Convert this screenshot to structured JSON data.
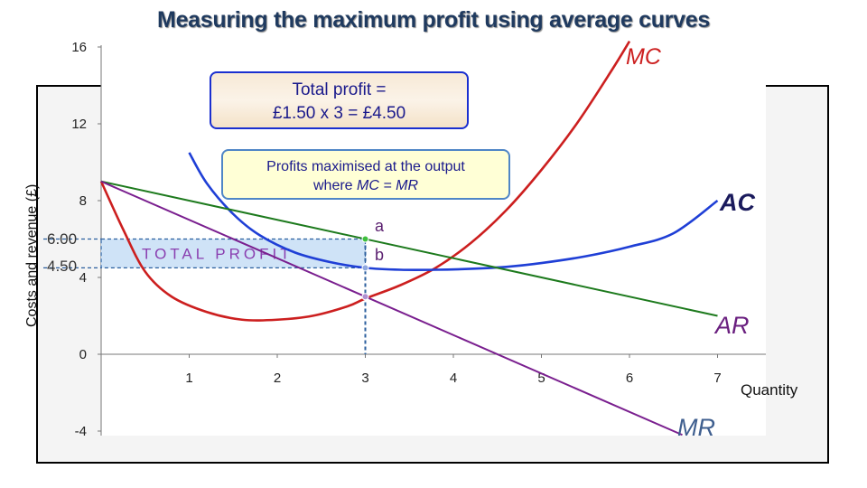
{
  "title": "Measuring the maximum profit using average curves",
  "callouts": {
    "total_profit_line1": "Total profit =",
    "total_profit_line2": "£1.50 x 3 = £4.50",
    "maximised_line1": "Profits maximised at the output",
    "maximised_line2_prefix": "where ",
    "maximised_line2_em": "MC = MR"
  },
  "colors": {
    "mc": "#cc1f1f",
    "ac": "#1f3fd6",
    "ar": "#1d7a1d",
    "mr": "#7a1f8f",
    "profit_fill": "#cfe3f7",
    "dashed": "#2b5f9e"
  },
  "chart_data": {
    "type": "line",
    "title": "",
    "xlabel": "Quantity",
    "ylabel": "Costs and revenue (£)",
    "xlim": [
      0,
      7.5
    ],
    "ylim": [
      -4,
      16
    ],
    "x_ticks": [
      "1",
      "2",
      "3",
      "4",
      "5",
      "6",
      "7"
    ],
    "y_ticks": [
      "16",
      "12",
      "8",
      "4",
      "0",
      "-4"
    ],
    "grid": false,
    "series": [
      {
        "name": "MC",
        "x": [
          0.0,
          0.25,
          0.5,
          0.8,
          1.2,
          1.6,
          2.0,
          2.4,
          2.8,
          3.0,
          3.4,
          3.8,
          4.2,
          4.6,
          5.0,
          5.4,
          5.8,
          6.0
        ],
        "y": [
          9.0,
          6.5,
          4.3,
          3.0,
          2.2,
          1.8,
          1.8,
          2.0,
          2.5,
          2.9,
          3.6,
          4.5,
          5.8,
          7.5,
          9.6,
          12.0,
          14.8,
          16.3
        ]
      },
      {
        "name": "AC",
        "x": [
          1.0,
          1.2,
          1.5,
          1.8,
          2.2,
          2.6,
          3.0,
          3.4,
          3.8,
          4.2,
          4.6,
          5.0,
          5.5,
          6.0,
          6.5,
          7.0
        ],
        "y": [
          10.5,
          8.9,
          7.3,
          6.2,
          5.3,
          4.8,
          4.5,
          4.4,
          4.4,
          4.45,
          4.55,
          4.75,
          5.1,
          5.6,
          6.3,
          8.0
        ]
      },
      {
        "name": "AR",
        "x": [
          0.0,
          7.0
        ],
        "y": [
          9.0,
          2.0
        ]
      },
      {
        "name": "MR",
        "x": [
          0.0,
          6.6
        ],
        "y": [
          9.0,
          -4.2
        ]
      }
    ],
    "points": [
      {
        "label": "a",
        "x": 3,
        "y": 6.0
      },
      {
        "label": "b",
        "x": 3,
        "y": 4.5
      },
      {
        "label": "",
        "x": 3,
        "y": 3.0
      }
    ],
    "annotations": {
      "price_label": "6.00",
      "cost_label": "4.50",
      "profit_area_label": "TOTAL PROFIT"
    }
  }
}
